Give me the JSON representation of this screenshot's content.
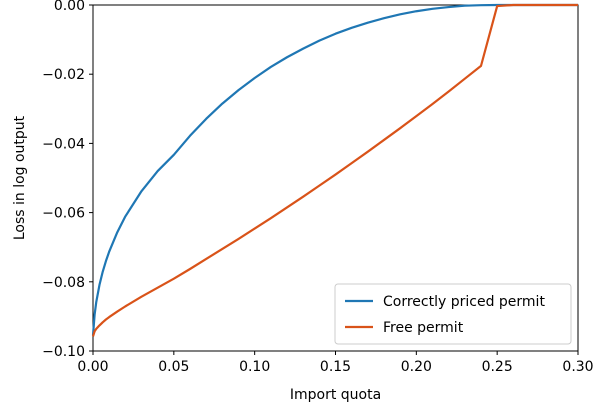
{
  "chart_data": {
    "type": "line",
    "xlabel": "Import quota",
    "ylabel": "Loss in log output",
    "xlim": [
      0.0,
      0.3
    ],
    "ylim": [
      -0.1,
      0.0
    ],
    "xticks": [
      0.0,
      0.05,
      0.1,
      0.15,
      0.2,
      0.25,
      0.3
    ],
    "xtick_labels": [
      "0.00",
      "0.05",
      "0.10",
      "0.15",
      "0.20",
      "0.25",
      "0.30"
    ],
    "yticks": [
      0.0,
      -0.02,
      -0.04,
      -0.06,
      -0.08,
      -0.1
    ],
    "ytick_labels": [
      "0.00",
      "−0.02",
      "−0.04",
      "−0.06",
      "−0.08",
      "−0.10"
    ],
    "hline": 0.0,
    "grid": false,
    "legend_position": "lower-right",
    "series": [
      {
        "name": "Correctly priced permit",
        "color": "#1f77b4",
        "x": [
          0.0,
          0.001,
          0.002,
          0.004,
          0.006,
          0.008,
          0.01,
          0.015,
          0.02,
          0.03,
          0.04,
          0.05,
          0.06,
          0.07,
          0.08,
          0.09,
          0.1,
          0.11,
          0.12,
          0.13,
          0.14,
          0.15,
          0.16,
          0.17,
          0.18,
          0.19,
          0.2,
          0.21,
          0.22,
          0.23,
          0.24,
          0.25,
          0.26,
          0.27,
          0.28,
          0.29,
          0.3
        ],
        "y": [
          -0.0955,
          -0.0895,
          -0.0859,
          -0.0809,
          -0.0771,
          -0.074,
          -0.0713,
          -0.0657,
          -0.0611,
          -0.0538,
          -0.048,
          -0.0433,
          -0.0378,
          -0.0329,
          -0.0285,
          -0.0246,
          -0.0211,
          -0.0179,
          -0.0151,
          -0.0126,
          -0.0103,
          -0.0083,
          -0.0066,
          -0.0051,
          -0.0038,
          -0.0027,
          -0.0018,
          -0.0011,
          -0.0006,
          -0.0002,
          -5e-05,
          0.0,
          0.0,
          0.0,
          0.0,
          0.0,
          0.0
        ]
      },
      {
        "name": "Free permit",
        "color": "#d95319",
        "x": [
          0.0,
          0.001,
          0.002,
          0.004,
          0.006,
          0.008,
          0.01,
          0.015,
          0.02,
          0.03,
          0.04,
          0.05,
          0.06,
          0.07,
          0.08,
          0.09,
          0.1,
          0.11,
          0.12,
          0.13,
          0.14,
          0.15,
          0.16,
          0.17,
          0.18,
          0.19,
          0.2,
          0.21,
          0.22,
          0.23,
          0.24,
          0.25,
          0.26,
          0.27,
          0.28,
          0.29,
          0.3
        ],
        "y": [
          -0.0958,
          -0.0943,
          -0.0936,
          -0.0926,
          -0.0917,
          -0.0909,
          -0.0902,
          -0.0886,
          -0.0871,
          -0.0843,
          -0.0817,
          -0.0791,
          -0.0763,
          -0.0734,
          -0.0705,
          -0.0676,
          -0.0646,
          -0.0616,
          -0.0585,
          -0.0554,
          -0.0522,
          -0.049,
          -0.0457,
          -0.0424,
          -0.039,
          -0.0356,
          -0.0321,
          -0.0286,
          -0.025,
          -0.0213,
          -0.0176,
          -0.0003,
          0.0,
          0.0,
          0.0,
          0.0,
          0.0
        ]
      }
    ]
  }
}
